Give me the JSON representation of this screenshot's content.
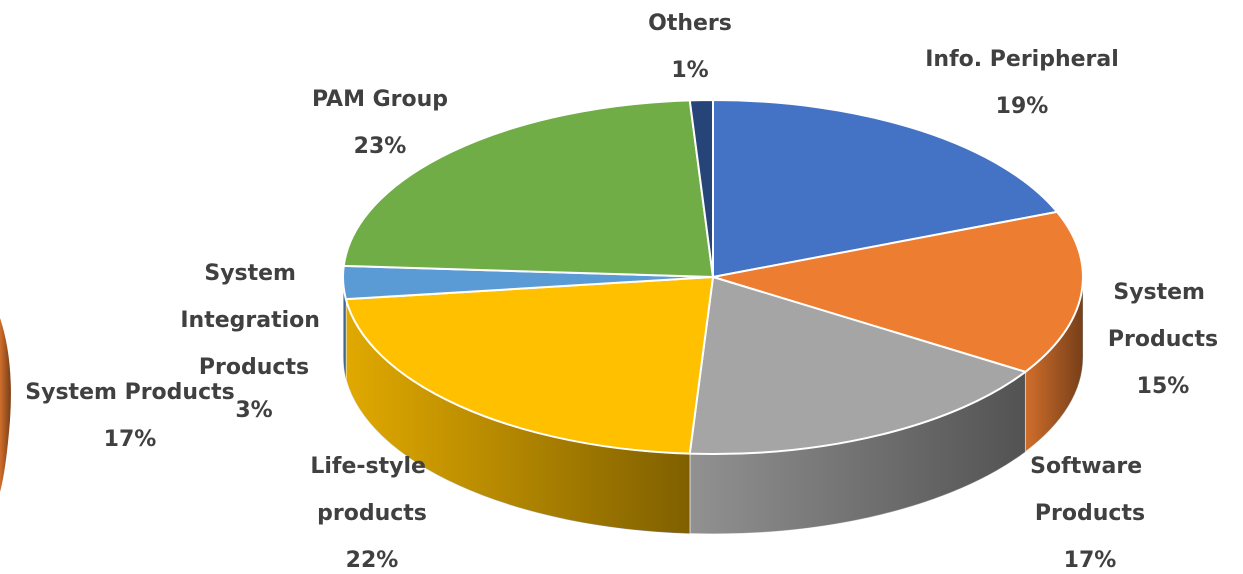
{
  "chart_data": [
    {
      "type": "pie3d",
      "categories": [
        "Info. Peripheral",
        "System Products",
        "Software Products",
        "Life-style products",
        "System Integration Products",
        "PAM Group",
        "Others"
      ],
      "values": [
        19,
        15,
        17,
        22,
        3,
        23,
        1
      ],
      "value_labels": [
        "19%",
        "15%",
        "17%",
        "22%",
        "3%",
        "23%",
        "1%"
      ],
      "colors": [
        "#4472c4",
        "#ed7d31",
        "#a5a5a5",
        "#ffc000",
        "#5b9bd5",
        "#70ad47",
        "#264478"
      ]
    },
    {
      "type": "pie3d-cropped",
      "categories": [
        "System Products"
      ],
      "values": [
        17
      ],
      "value_labels": [
        "17%"
      ],
      "colors": [
        "#ed7d31"
      ]
    }
  ]
}
